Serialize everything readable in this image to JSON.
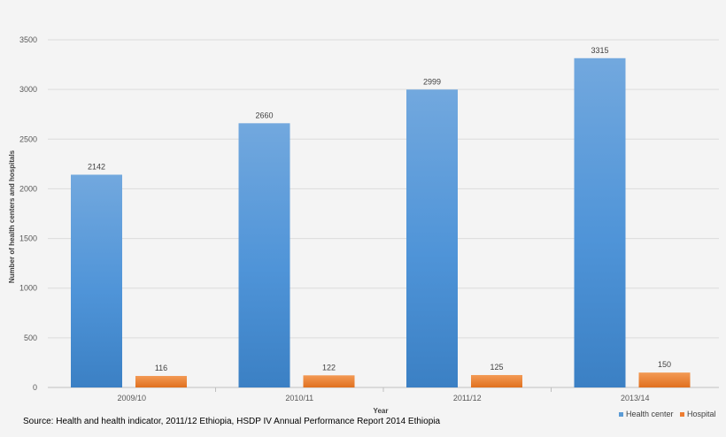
{
  "chart_data": {
    "type": "bar",
    "categories": [
      "2009/10",
      "2010/11",
      "2011/12",
      "2013/14"
    ],
    "series": [
      {
        "name": "Health center",
        "values": [
          2142,
          2660,
          2999,
          3315
        ],
        "color": "#5b9bd5"
      },
      {
        "name": "Hospital",
        "values": [
          116,
          122,
          125,
          150
        ],
        "color": "#ed7d31"
      }
    ],
    "xlabel": "Year",
    "ylabel": "Number of health centers and hospitals",
    "ylim": [
      0,
      3500
    ],
    "yticks": [
      0,
      500,
      1000,
      1500,
      2000,
      2500,
      3000,
      3500
    ],
    "grid": true,
    "legend_position": "bottom-right"
  },
  "source_note": "Source: Health and health indicator, 2011/12 Ethiopia, HSDP IV Annual Performance Report 2014 Ethiopia"
}
